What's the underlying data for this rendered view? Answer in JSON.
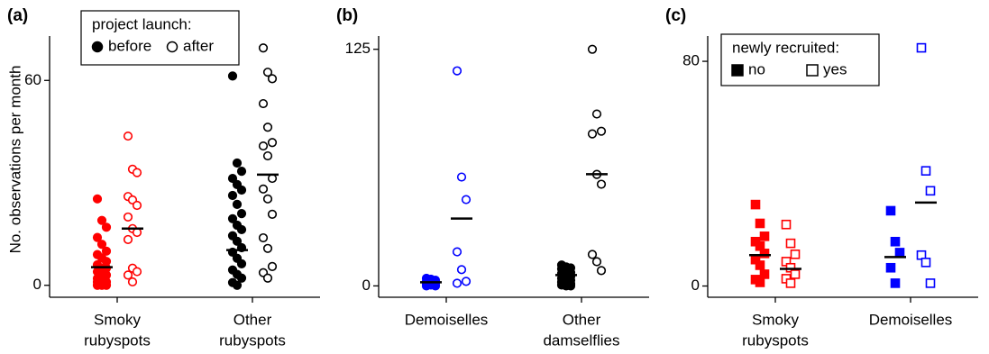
{
  "chart_data": [
    {
      "type": "strip",
      "label": "(a)",
      "ylabel": "No. observations per month",
      "marker": "circle",
      "ylim": [
        -3.5,
        73
      ],
      "yticks": [
        0,
        60
      ],
      "categories": [
        [
          "Smoky",
          "rubyspots"
        ],
        [
          "Other",
          "rubyspots"
        ]
      ],
      "legend": {
        "title": "project launch:",
        "position": "upper left"
      },
      "series": [
        {
          "name": "before",
          "category": 0,
          "color": "#ff0000",
          "filled": true,
          "mean": 5.3,
          "values": [
            25.3,
            19,
            17,
            14,
            12,
            10,
            9,
            8,
            7,
            6,
            5,
            5,
            4,
            3,
            3,
            2,
            2,
            1,
            1,
            0,
            0,
            0
          ]
        },
        {
          "name": "after",
          "category": 0,
          "color": "#ff0000",
          "filled": false,
          "mean": 16.6,
          "values": [
            43.7,
            34,
            33,
            26,
            25,
            23.4,
            20,
            16.6,
            15.5,
            13.4,
            5,
            4,
            3,
            1
          ]
        },
        {
          "name": "before",
          "category": 1,
          "color": "#000000",
          "filled": true,
          "mean": 10.3,
          "values": [
            61.3,
            35.8,
            33.4,
            31.3,
            29.5,
            27.9,
            26.3,
            23.7,
            21,
            19.5,
            17.6,
            16.3,
            14.5,
            12.9,
            11,
            9.7,
            7.9,
            6.3,
            4.5,
            3.2,
            2.1,
            0.8,
            0
          ]
        },
        {
          "name": "after",
          "category": 1,
          "color": "#000000",
          "filled": false,
          "mean": 32.4,
          "values": [
            69.5,
            62.4,
            60.5,
            53.2,
            46.3,
            41.8,
            40.8,
            37.9,
            31.3,
            28.2,
            25.3,
            20.8,
            13.9,
            10.8,
            5.5,
            3.7,
            2.1
          ]
        }
      ]
    },
    {
      "type": "strip",
      "label": "(b)",
      "marker": "circle",
      "ylim": [
        -6,
        132
      ],
      "yticks": [
        0,
        125
      ],
      "categories": [
        [
          "Demoiselles"
        ],
        [
          "Other",
          "damselflies"
        ]
      ],
      "series": [
        {
          "name": "before",
          "category": 0,
          "color": "#0000ff",
          "filled": true,
          "mean": 1.9,
          "values": [
            4,
            3.5,
            3,
            2.5,
            2,
            1.5,
            1,
            0.5,
            0,
            0
          ]
        },
        {
          "name": "after",
          "category": 0,
          "color": "#0000ff",
          "filled": false,
          "mean": 35.6,
          "values": [
            113.6,
            57.5,
            45.6,
            18,
            8.6,
            2.4,
            1.4
          ]
        },
        {
          "name": "before",
          "category": 1,
          "color": "#000000",
          "filled": true,
          "mean": 5.7,
          "values": [
            11,
            10,
            9.5,
            9,
            8,
            7,
            6.5,
            6,
            5,
            4,
            3.5,
            3,
            2,
            1.5,
            1,
            0.5,
            0,
            0
          ]
        },
        {
          "name": "after",
          "category": 1,
          "color": "#000000",
          "filled": false,
          "mean": 59,
          "values": [
            125,
            90.8,
            81.7,
            80.3,
            58.9,
            53.7,
            16.6,
            12.8,
            8.1
          ]
        }
      ]
    },
    {
      "type": "strip",
      "label": "(c)",
      "marker": "square",
      "ylim": [
        -4,
        89
      ],
      "yticks": [
        0,
        80
      ],
      "categories": [
        [
          "Smoky",
          "rubyspots"
        ],
        [
          "Demoiselles"
        ]
      ],
      "legend": {
        "title": "newly recruited:",
        "position": "upper left"
      },
      "series": [
        {
          "name": "no",
          "category": 0,
          "color": "#ff0000",
          "filled": true,
          "mean": 11,
          "values": [
            29,
            22.3,
            17.7,
            15.8,
            14.2,
            11.6,
            9.4,
            7.4,
            4.2,
            2.3,
            1.3
          ]
        },
        {
          "name": "yes",
          "category": 0,
          "color": "#ff0000",
          "filled": false,
          "mean": 6.1,
          "values": [
            21.9,
            15.2,
            11.3,
            8.7,
            6.5,
            4.2,
            2.6,
            1
          ]
        },
        {
          "name": "no",
          "category": 1,
          "color": "#0000ff",
          "filled": true,
          "mean": 10.3,
          "values": [
            26.8,
            15.8,
            11.9,
            6.5,
            1
          ]
        },
        {
          "name": "yes",
          "category": 1,
          "color": "#0000ff",
          "filled": false,
          "mean": 29.7,
          "values": [
            84.8,
            41,
            33.9,
            11,
            8.4,
            1
          ]
        }
      ]
    }
  ]
}
